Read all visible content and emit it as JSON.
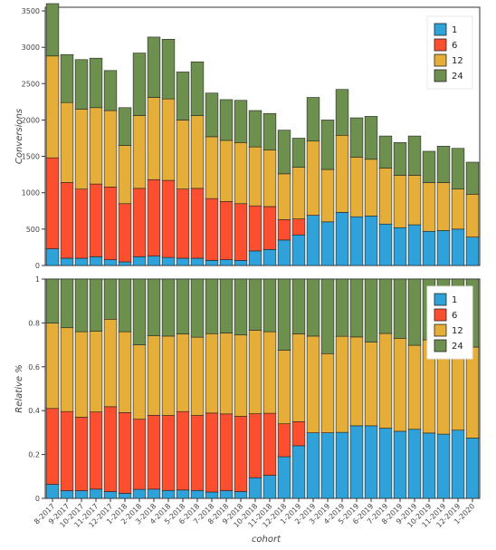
{
  "colors": {
    "1": "#30a2da",
    "6": "#fc4f30",
    "12": "#e5ae38",
    "24": "#6d904f"
  },
  "chart_data": [
    {
      "type": "bar",
      "stacked": true,
      "ylabel": "Conversions",
      "xlabel": "",
      "ylim": [
        0,
        3550
      ],
      "yticks": [
        0,
        500,
        1000,
        1500,
        2000,
        2500,
        3000,
        3500
      ],
      "legend_position": "top-right",
      "categories": [
        "8-2017",
        "9-2017",
        "10-2017",
        "11-2017",
        "12-2017",
        "1-2018",
        "2-2018",
        "3-2018",
        "4-2018",
        "5-2018",
        "6-2018",
        "7-2018",
        "8-2018",
        "9-2018",
        "10-2018",
        "11-2018",
        "12-2018",
        "1-2019",
        "2-2019",
        "3-2019",
        "4-2019",
        "5-2019",
        "6-2019",
        "7-2019",
        "8-2019",
        "9-2019",
        "10-2019",
        "11-2019",
        "12-2019",
        "1-2020"
      ],
      "series": [
        {
          "name": "1",
          "values": [
            230,
            100,
            100,
            120,
            80,
            50,
            120,
            130,
            110,
            100,
            100,
            70,
            80,
            70,
            200,
            220,
            350,
            420,
            690,
            600,
            730,
            670,
            680,
            570,
            520,
            560,
            470,
            480,
            500,
            390
          ]
        },
        {
          "name": "6",
          "values": [
            1250,
            1040,
            950,
            1000,
            1000,
            800,
            940,
            1050,
            1060,
            950,
            960,
            850,
            800,
            780,
            620,
            590,
            280,
            220,
            0,
            0,
            0,
            0,
            0,
            0,
            0,
            0,
            0,
            0,
            0,
            0
          ]
        },
        {
          "name": "12",
          "values": [
            1400,
            1100,
            1100,
            1050,
            1050,
            800,
            1000,
            1130,
            1120,
            950,
            1000,
            850,
            840,
            840,
            810,
            780,
            630,
            710,
            1020,
            720,
            1060,
            820,
            780,
            770,
            720,
            680,
            670,
            660,
            550,
            590
          ]
        },
        {
          "name": "24",
          "values": [
            720,
            660,
            680,
            680,
            550,
            520,
            860,
            830,
            820,
            660,
            740,
            600,
            560,
            580,
            500,
            500,
            600,
            400,
            600,
            680,
            630,
            540,
            590,
            440,
            450,
            540,
            430,
            500,
            560,
            440
          ]
        }
      ]
    },
    {
      "type": "bar",
      "stacked": true,
      "ylabel": "Relative %",
      "xlabel": "cohort",
      "ylim": [
        0,
        1.0
      ],
      "yticks": [
        0,
        0.2,
        0.4,
        0.6,
        0.8,
        1
      ],
      "legend_position": "top-right",
      "categories": [
        "8-2017",
        "9-2017",
        "10-2017",
        "11-2017",
        "12-2017",
        "1-2018",
        "2-2018",
        "3-2018",
        "4-2018",
        "5-2018",
        "6-2018",
        "7-2018",
        "8-2018",
        "9-2018",
        "10-2018",
        "11-2018",
        "12-2018",
        "1-2019",
        "2-2019",
        "3-2019",
        "4-2019",
        "5-2019",
        "6-2019",
        "7-2019",
        "8-2019",
        "9-2019",
        "10-2019",
        "11-2019",
        "12-2019",
        "1-2020"
      ],
      "series": [
        {
          "name": "1",
          "values": [
            0.064,
            0.035,
            0.035,
            0.042,
            0.031,
            0.023,
            0.041,
            0.042,
            0.036,
            0.038,
            0.036,
            0.029,
            0.035,
            0.031,
            0.094,
            0.105,
            0.19,
            0.24,
            0.299,
            0.299,
            0.301,
            0.331,
            0.331,
            0.32,
            0.306,
            0.315,
            0.298,
            0.293,
            0.311,
            0.275
          ]
        },
        {
          "name": "6",
          "values": [
            0.346,
            0.361,
            0.335,
            0.352,
            0.387,
            0.368,
            0.32,
            0.337,
            0.342,
            0.358,
            0.342,
            0.36,
            0.35,
            0.343,
            0.292,
            0.283,
            0.15,
            0.11,
            0,
            0,
            0,
            0,
            0,
            0,
            0,
            0,
            0,
            0,
            0,
            0
          ]
        },
        {
          "name": "12",
          "values": [
            0.389,
            0.382,
            0.39,
            0.368,
            0.399,
            0.369,
            0.339,
            0.362,
            0.362,
            0.354,
            0.357,
            0.362,
            0.369,
            0.371,
            0.381,
            0.372,
            0.335,
            0.4,
            0.441,
            0.361,
            0.438,
            0.405,
            0.381,
            0.432,
            0.424,
            0.383,
            0.425,
            0.402,
            0.342,
            0.415
          ]
        },
        {
          "name": "24",
          "values": [
            0.201,
            0.222,
            0.24,
            0.238,
            0.183,
            0.24,
            0.3,
            0.259,
            0.26,
            0.25,
            0.265,
            0.249,
            0.246,
            0.255,
            0.233,
            0.24,
            0.325,
            0.25,
            0.26,
            0.34,
            0.261,
            0.264,
            0.288,
            0.248,
            0.27,
            0.302,
            0.277,
            0.305,
            0.347,
            0.31
          ]
        }
      ]
    }
  ]
}
